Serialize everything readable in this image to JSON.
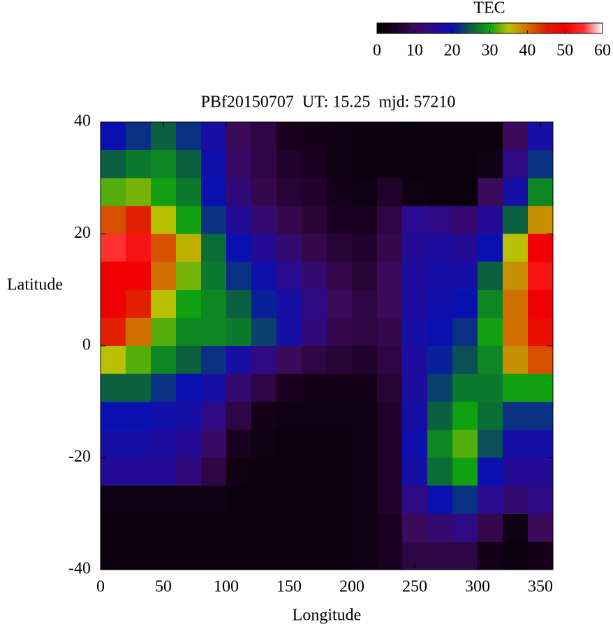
{
  "chart_data": {
    "type": "heatmap",
    "title": "PBf20150707  UT: 15.25  mjd: 57210",
    "xlabel": "Longitude",
    "ylabel": "Latitude",
    "colorbar_label": "TEC",
    "x": [
      10,
      30,
      50,
      70,
      90,
      110,
      130,
      150,
      170,
      190,
      210,
      230,
      250,
      270,
      290,
      310,
      330,
      350
    ],
    "y": [
      37.5,
      32.5,
      27.5,
      22.5,
      17.5,
      12.5,
      7.5,
      2.5,
      -2.5,
      -7.5,
      -12.5,
      -17.5,
      -22.5,
      -27.5,
      -32.5,
      -37.5
    ],
    "z": [
      [
        20,
        22,
        25,
        22,
        18,
        10,
        8,
        5,
        4,
        3,
        2,
        2,
        2,
        2,
        2,
        2,
        10,
        18
      ],
      [
        25,
        27,
        28,
        25,
        19,
        11,
        8,
        6,
        5,
        3,
        2,
        2,
        2,
        2,
        2,
        3,
        14,
        22
      ],
      [
        32,
        33,
        30,
        27,
        20,
        13,
        9,
        7,
        6,
        4,
        3,
        6,
        3,
        2,
        2,
        10,
        18,
        28
      ],
      [
        42,
        45,
        35,
        30,
        22,
        16,
        12,
        9,
        7,
        5,
        5,
        8,
        15,
        14,
        12,
        16,
        25,
        38
      ],
      [
        55,
        52,
        42,
        36,
        26,
        20,
        16,
        12,
        9,
        7,
        6,
        9,
        16,
        17,
        16,
        20,
        35,
        50
      ],
      [
        50,
        50,
        40,
        33,
        27,
        22,
        19,
        15,
        12,
        9,
        7,
        10,
        17,
        18,
        18,
        25,
        38,
        52
      ],
      [
        50,
        45,
        35,
        30,
        28,
        25,
        21,
        18,
        14,
        10,
        8,
        10,
        17,
        19,
        20,
        28,
        40,
        50
      ],
      [
        45,
        40,
        32,
        28,
        28,
        27,
        23,
        18,
        13,
        9,
        8,
        9,
        18,
        20,
        22,
        30,
        40,
        48
      ],
      [
        35,
        32,
        28,
        25,
        22,
        18,
        14,
        10,
        8,
        7,
        6,
        8,
        17,
        21,
        24,
        28,
        38,
        42
      ],
      [
        25,
        25,
        22,
        20,
        18,
        12,
        8,
        5,
        4,
        4,
        4,
        7,
        17,
        23,
        27,
        27,
        30,
        30
      ],
      [
        20,
        20,
        19,
        18,
        14,
        8,
        4,
        3,
        3,
        3,
        3,
        6,
        18,
        25,
        30,
        26,
        22,
        22
      ],
      [
        18,
        18,
        17,
        16,
        11,
        5,
        3,
        2,
        2,
        2,
        3,
        6,
        19,
        28,
        32,
        24,
        18,
        18
      ],
      [
        16,
        16,
        16,
        13,
        8,
        3,
        2,
        2,
        2,
        2,
        3,
        6,
        18,
        26,
        30,
        20,
        16,
        16
      ],
      [
        3,
        3,
        3,
        3,
        3,
        2,
        2,
        2,
        2,
        2,
        3,
        6,
        14,
        20,
        22,
        15,
        12,
        14
      ],
      [
        2,
        2,
        2,
        2,
        2,
        2,
        2,
        2,
        2,
        2,
        3,
        5,
        10,
        12,
        14,
        9,
        3,
        10
      ],
      [
        2,
        2,
        2,
        2,
        2,
        2,
        2,
        2,
        2,
        2,
        3,
        5,
        8,
        8,
        8,
        4,
        2,
        4
      ]
    ],
    "xlim": [
      0,
      360
    ],
    "xticks": [
      0,
      50,
      100,
      150,
      200,
      250,
      300,
      350
    ],
    "ylim": [
      -40,
      40
    ],
    "yticks": [
      -40,
      -20,
      0,
      20,
      40
    ],
    "zlim": [
      0,
      60
    ],
    "zticks": [
      0,
      10,
      20,
      30,
      40,
      50,
      60
    ],
    "colorscale": [
      "#000000",
      "#1a0020",
      "#3c0a5a",
      "#2a0a90",
      "#0a10b0",
      "#0a6040",
      "#10a010",
      "#b8c000",
      "#d07000",
      "#e02000",
      "#f00000",
      "#ff3030",
      "#ffffff"
    ]
  }
}
